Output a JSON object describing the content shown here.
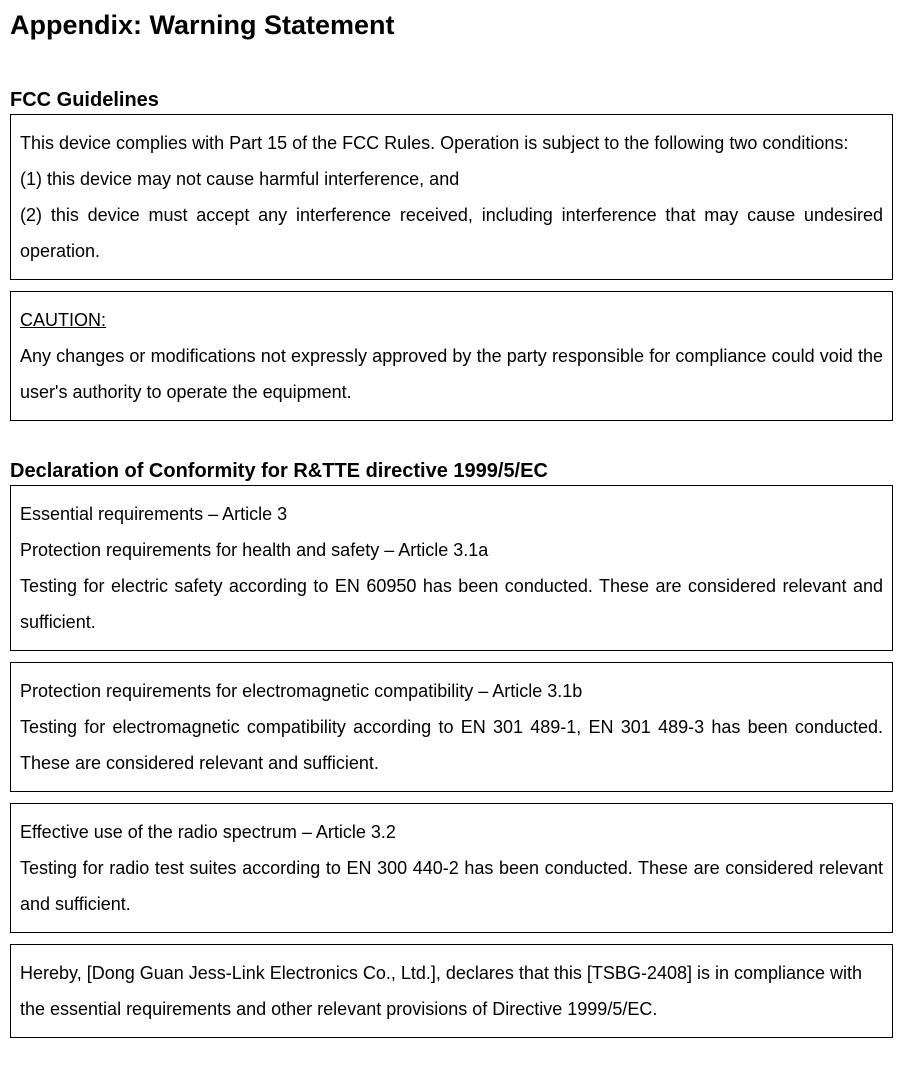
{
  "title": "Appendix: Warning Statement",
  "fcc": {
    "heading": "FCC Guidelines",
    "box1": {
      "intro": "This device complies with Part 15 of the FCC Rules. Operation is subject to the following two conditions:",
      "cond1": "(1) this device may not cause harmful interference, and",
      "cond2": "(2) this device must accept any interference received, including interference that may cause undesired operation."
    },
    "box2": {
      "caution_label": "CAUTION:",
      "caution_text": "Any changes or modifications not expressly approved by the party responsible for compliance could void the user's authority to operate the equipment."
    }
  },
  "doc": {
    "heading": "Declaration of Conformity for R&TTE directive 1999/5/EC",
    "box1": {
      "line1": "Essential requirements – Article 3",
      "line2": "Protection requirements for health and safety – Article 3.1a",
      "line3": "Testing for electric safety according to EN 60950 has been conducted. These are considered relevant and sufficient."
    },
    "box2": {
      "line1": "Protection requirements for electromagnetic compatibility – Article 3.1b",
      "line2": "Testing for electromagnetic compatibility according to EN 301 489-1, EN 301 489-3 has been conducted. These are considered relevant and sufficient."
    },
    "box3": {
      "line1": "Effective use of the radio spectrum – Article 3.2",
      "line2": "Testing for radio test suites according to EN 300 440-2 has been conducted. These are considered relevant and sufficient."
    },
    "box4": {
      "text": "Hereby, [Dong Guan Jess-Link Electronics Co., Ltd.], declares that this [TSBG-2408] is in compliance with the essential requirements and other relevant provisions of Directive 1999/5/EC."
    }
  }
}
